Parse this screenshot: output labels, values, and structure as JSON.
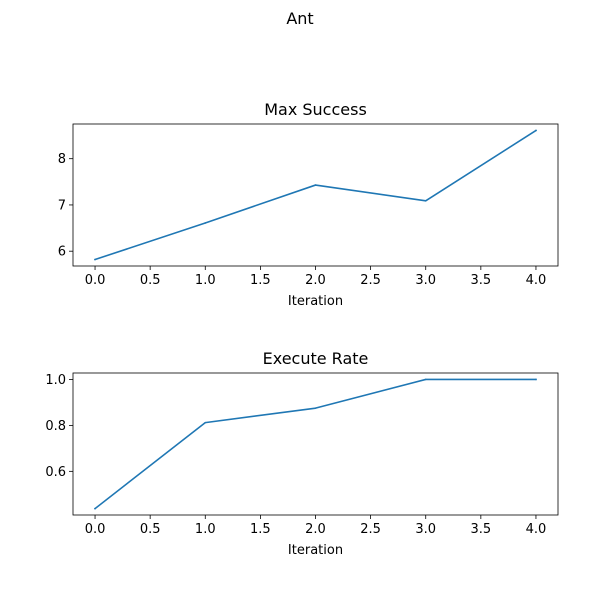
{
  "figure": {
    "suptitle": "Ant"
  },
  "style": {
    "line_color": "#1f77b4"
  },
  "chart_data": [
    {
      "type": "line",
      "title": "Max Success",
      "xlabel": "Iteration",
      "ylabel": "",
      "x": [
        0,
        1,
        2,
        3,
        4
      ],
      "series": [
        {
          "values": [
            5.82,
            6.61,
            7.43,
            7.09,
            8.61
          ]
        }
      ],
      "xlim": [
        -0.2,
        4.2
      ],
      "ylim": [
        5.68,
        8.75
      ],
      "xticks": [
        0.0,
        0.5,
        1.0,
        1.5,
        2.0,
        2.5,
        3.0,
        3.5,
        4.0
      ],
      "xtick_labels": [
        "0.0",
        "0.5",
        "1.0",
        "1.5",
        "2.0",
        "2.5",
        "3.0",
        "3.5",
        "4.0"
      ],
      "yticks": [
        6,
        7,
        8
      ],
      "ytick_labels": [
        "6",
        "7",
        "8"
      ],
      "grid": false,
      "legend": false
    },
    {
      "type": "line",
      "title": "Execute Rate",
      "xlabel": "Iteration",
      "ylabel": "",
      "x": [
        0,
        1,
        2,
        3,
        4
      ],
      "series": [
        {
          "values": [
            0.438,
            0.812,
            0.875,
            1.0,
            1.0
          ]
        }
      ],
      "xlim": [
        -0.2,
        4.2
      ],
      "ylim": [
        0.41,
        1.028
      ],
      "xticks": [
        0.0,
        0.5,
        1.0,
        1.5,
        2.0,
        2.5,
        3.0,
        3.5,
        4.0
      ],
      "xtick_labels": [
        "0.0",
        "0.5",
        "1.0",
        "1.5",
        "2.0",
        "2.5",
        "3.0",
        "3.5",
        "4.0"
      ],
      "yticks": [
        0.6,
        0.8,
        1.0
      ],
      "ytick_labels": [
        "0.6",
        "0.8",
        "1.0"
      ],
      "grid": false,
      "legend": false
    }
  ]
}
